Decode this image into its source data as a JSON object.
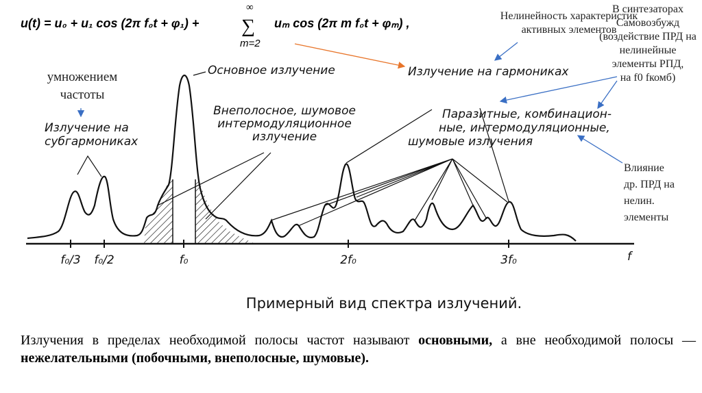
{
  "formula": {
    "left": "u(t) = u₀ + u₁ cos (2π  f₀t + φ₁) +",
    "sigma": "∑",
    "upper": "∞",
    "lower": "m=2",
    "right": "uₘ cos (2π m f₀t + φₘ) ,"
  },
  "notes": {
    "nonlinearity": [
      "Нелинейность характеристик",
      "активных элементов"
    ],
    "synth": [
      "В синтезаторах",
      "Самовозбужд",
      "(воздействие ПРД на",
      "нелинейные",
      "элементы РПД,",
      "на f0 fкомб)"
    ],
    "multiplication": [
      "умножением",
      "частоты"
    ],
    "influence": [
      "Влияние",
      "др. ПРД на",
      "нелин.",
      "элементы"
    ]
  },
  "figure": {
    "subharmonics": [
      "Излучение на",
      "субгармониках"
    ],
    "main": "Основное излучение",
    "outofband": [
      "Внеполосное, шумовое",
      "интермодуляционное",
      "излучение"
    ],
    "harmonics": "Излучение на гармониках",
    "spurious": [
      "Паразитные, комбинацион-",
      "ные, интермодуляционные,",
      "шумовые   излучения"
    ],
    "axis": [
      "f₀/3",
      "f₀/2",
      "f₀",
      "2f₀",
      "3f₀",
      "f"
    ],
    "caption": "Примерный вид спектра излучений."
  },
  "paragraph": [
    {
      "text": "Излучения в пределах необходимой полосы частот называют ",
      "bold": false
    },
    {
      "text": "основными,",
      "bold": true
    },
    {
      "text": " а вне необходимой полосы — ",
      "bold": false
    },
    {
      "text": "нежелательными (побочными, внеполосные, шумовые).",
      "bold": true
    }
  ]
}
